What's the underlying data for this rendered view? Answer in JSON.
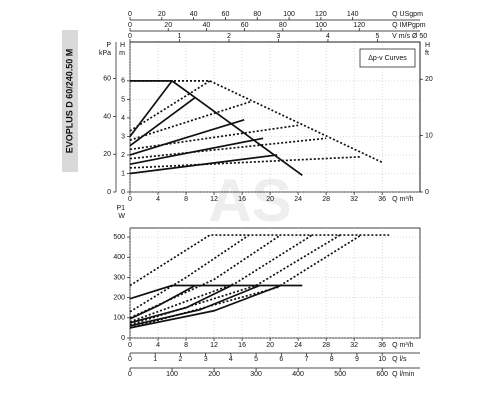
{
  "product_label": "EVOPLUS D 60/240.50 M",
  "watermark": "AS",
  "chart_data": [
    {
      "type": "line",
      "annotation": "Δp-v Curves",
      "xlim": [
        0,
        41.4
      ],
      "xticks": [
        0,
        4,
        8,
        12,
        16,
        20,
        24,
        28,
        32,
        36
      ],
      "xlabel": "Q m³/h",
      "ylim": [
        0,
        8.1
      ],
      "yticks": [
        0,
        1,
        2,
        3,
        4,
        5,
        6
      ],
      "ylabel": [
        "H",
        "m"
      ],
      "grid": true,
      "axes": [
        {
          "side": "top",
          "label": "V m/s Ø 50",
          "lim": [
            0,
            5.86
          ],
          "ticks": [
            0,
            1,
            2,
            3,
            4,
            5
          ]
        },
        {
          "side": "top",
          "label": "Q IMPgpm",
          "lim": [
            0,
            151.8
          ],
          "ticks": [
            0,
            20,
            40,
            60,
            80,
            100,
            120
          ]
        },
        {
          "side": "top",
          "label": "Q USgpm",
          "lim": [
            0,
            182.3
          ],
          "ticks": [
            0,
            20,
            40,
            60,
            80,
            100,
            120,
            140
          ]
        },
        {
          "side": "left",
          "label": [
            "P",
            "kPa"
          ],
          "lim": [
            0,
            79.4
          ],
          "ticks": [
            0,
            20,
            40,
            60
          ]
        },
        {
          "side": "right",
          "label": [
            "H",
            "ft"
          ],
          "lim": [
            0,
            26.6
          ],
          "ticks": [
            0,
            10,
            20
          ]
        }
      ],
      "series": [
        {
          "style": "solid",
          "color": "#111111",
          "x": [
            0,
            6,
            9.3,
            24.6
          ],
          "y": [
            6,
            6,
            5.1,
            0.9
          ]
        },
        {
          "style": "solid",
          "color": "#111111",
          "x": [
            0,
            6
          ],
          "y": [
            3,
            6
          ]
        },
        {
          "style": "solid",
          "color": "#111111",
          "x": [
            0,
            9.3
          ],
          "y": [
            2.5,
            5.1
          ]
        },
        {
          "style": "solid",
          "color": "#111111",
          "x": [
            0,
            16.3
          ],
          "y": [
            2.0,
            3.9
          ]
        },
        {
          "style": "solid",
          "color": "#111111",
          "x": [
            0,
            19
          ],
          "y": [
            1.5,
            2.9
          ]
        },
        {
          "style": "solid",
          "color": "#111111",
          "x": [
            0,
            21
          ],
          "y": [
            1.0,
            2.0
          ]
        },
        {
          "style": "dotted",
          "color": "#111111",
          "x": [
            0,
            11.4,
            36
          ],
          "y": [
            6,
            6,
            1.6
          ]
        },
        {
          "style": "dotted",
          "color": "#111111",
          "x": [
            0,
            11.4
          ],
          "y": [
            3.3,
            6
          ]
        },
        {
          "style": "dotted",
          "color": "#111111",
          "x": [
            0,
            17.4
          ],
          "y": [
            2.8,
            4.9
          ]
        },
        {
          "style": "dotted",
          "color": "#111111",
          "x": [
            0,
            24
          ],
          "y": [
            2.3,
            3.6
          ]
        },
        {
          "style": "dotted",
          "color": "#111111",
          "x": [
            0,
            28
          ],
          "y": [
            1.8,
            2.9
          ]
        },
        {
          "style": "dotted",
          "color": "#111111",
          "x": [
            0,
            33
          ],
          "y": [
            1.3,
            1.9
          ]
        }
      ]
    },
    {
      "type": "line",
      "xlim": [
        0,
        41.4
      ],
      "xticks": [
        0,
        4,
        8,
        12,
        16,
        20,
        24,
        28,
        32,
        36
      ],
      "xlabel": "Q m³/h",
      "ylim": [
        0,
        545
      ],
      "yticks": [
        0,
        100,
        200,
        300,
        400,
        500
      ],
      "ylabel": [
        "P1",
        "W"
      ],
      "grid": true,
      "axes": [
        {
          "side": "bottom",
          "label": "Q l/s",
          "lim": [
            0,
            11.5
          ],
          "ticks": [
            0,
            1,
            2,
            3,
            4,
            5,
            6,
            7,
            8,
            9,
            10
          ]
        },
        {
          "side": "bottom",
          "label": "Q l/min",
          "lim": [
            0,
            690
          ],
          "ticks": [
            0,
            100,
            200,
            300,
            400,
            500,
            600
          ]
        }
      ],
      "series": [
        {
          "style": "solid",
          "color": "#111111",
          "x": [
            0,
            6,
            24.6
          ],
          "y": [
            195,
            260,
            260
          ]
        },
        {
          "style": "solid",
          "color": "#111111",
          "x": [
            0,
            4,
            9.3
          ],
          "y": [
            95,
            160,
            260
          ]
        },
        {
          "style": "solid",
          "color": "#111111",
          "x": [
            0,
            8,
            14.5
          ],
          "y": [
            75,
            150,
            260
          ]
        },
        {
          "style": "solid",
          "color": "#111111",
          "x": [
            0,
            10,
            18.5
          ],
          "y": [
            60,
            140,
            260
          ]
        },
        {
          "style": "solid",
          "color": "#111111",
          "x": [
            0,
            12,
            21.5
          ],
          "y": [
            50,
            135,
            260
          ]
        },
        {
          "style": "dotted",
          "color": "#111111",
          "x": [
            0,
            11.4,
            37
          ],
          "y": [
            260,
            510,
            510
          ]
        },
        {
          "style": "dotted",
          "color": "#111111",
          "x": [
            0,
            8,
            17
          ],
          "y": [
            130,
            300,
            510
          ]
        },
        {
          "style": "dotted",
          "color": "#111111",
          "x": [
            0,
            12,
            21.5
          ],
          "y": [
            100,
            290,
            510
          ]
        },
        {
          "style": "dotted",
          "color": "#111111",
          "x": [
            0,
            15,
            26
          ],
          "y": [
            80,
            270,
            510
          ]
        },
        {
          "style": "dotted",
          "color": "#111111",
          "x": [
            0,
            18,
            30
          ],
          "y": [
            65,
            260,
            510
          ]
        },
        {
          "style": "dotted",
          "color": "#111111",
          "x": [
            0,
            21,
            33
          ],
          "y": [
            50,
            250,
            510
          ]
        }
      ]
    }
  ]
}
